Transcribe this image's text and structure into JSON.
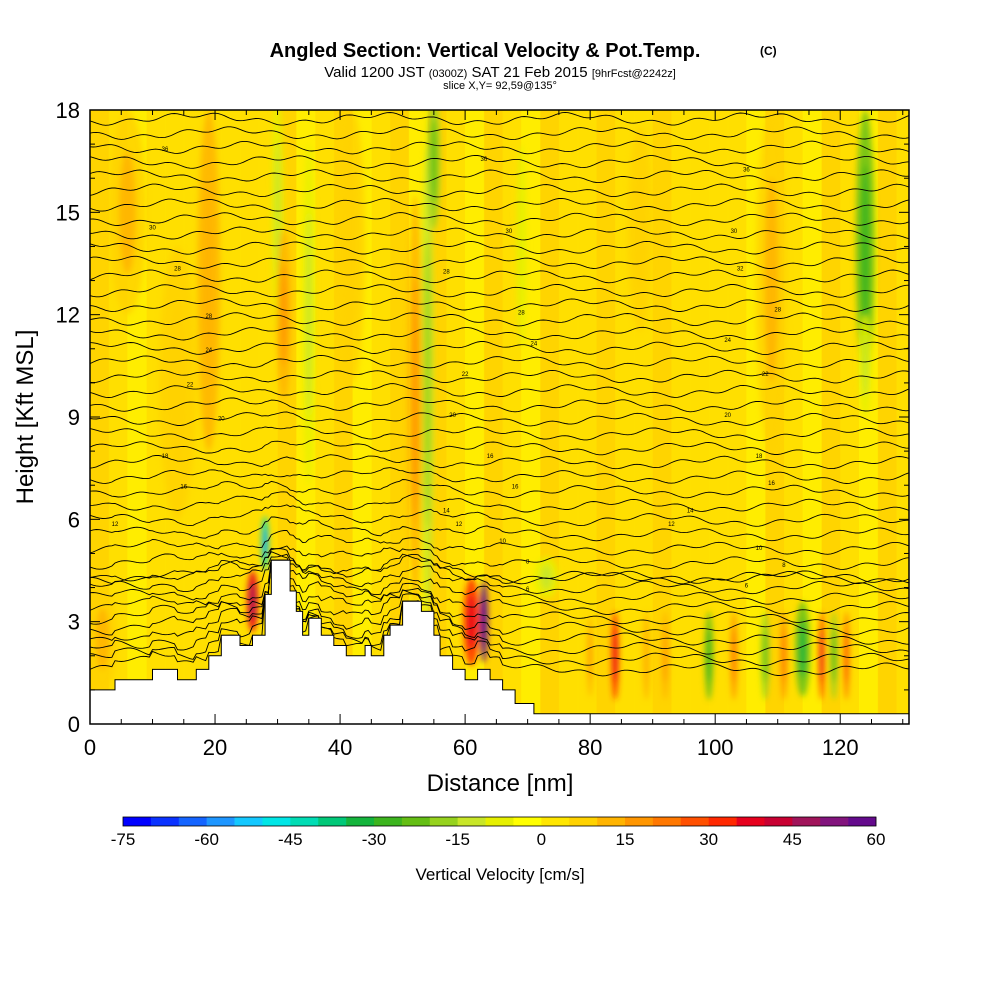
{
  "chart_data": {
    "type": "heatmap",
    "title": "Angled Section: Vertical Velocity & Pot.Temp.",
    "title_mark": "(C)",
    "subtitle": {
      "valid": "Valid 1200 JST",
      "utc": "(0300Z)",
      "date": "SAT 21 Feb 2015",
      "fcst": "[9hrFcst@2242z]"
    },
    "slice_label": "slice X,Y= 92,59@135°",
    "xlabel": "Distance [nm]",
    "ylabel": "Height [Kft MSL]",
    "xlim": [
      0,
      131
    ],
    "ylim": [
      0,
      18
    ],
    "x_ticks": [
      "0",
      "20",
      "40",
      "60",
      "80",
      "100",
      "120"
    ],
    "x_tick_values": [
      0,
      20,
      40,
      60,
      80,
      100,
      120
    ],
    "y_ticks": [
      "0",
      "3",
      "6",
      "9",
      "12",
      "15",
      "18"
    ],
    "y_tick_values": [
      0,
      3,
      6,
      9,
      12,
      15,
      18
    ],
    "colorbar": {
      "label": "Vertical Velocity [cm/s]",
      "ticks": [
        "-75",
        "-60",
        "-45",
        "-30",
        "-15",
        "0",
        "15",
        "30",
        "45",
        "60"
      ],
      "min": -75,
      "max": 60,
      "colors": [
        "#0000ff",
        "#0a32ff",
        "#1464ff",
        "#1e96ff",
        "#14c8ff",
        "#00e6e6",
        "#00dcb4",
        "#00c878",
        "#14b43c",
        "#3cb41e",
        "#64be14",
        "#96d21e",
        "#c8e628",
        "#e6f000",
        "#ffff00",
        "#ffe600",
        "#ffd200",
        "#ffb400",
        "#ff9600",
        "#ff7800",
        "#ff5000",
        "#ff2800",
        "#e6001e",
        "#c80032",
        "#a0145a",
        "#82147d",
        "#640a8c"
      ]
    },
    "terrain_profile": [
      [
        0,
        1.0
      ],
      [
        4,
        1.0
      ],
      [
        4,
        1.3
      ],
      [
        10,
        1.3
      ],
      [
        10,
        1.6
      ],
      [
        14,
        1.6
      ],
      [
        14,
        1.3
      ],
      [
        17,
        1.3
      ],
      [
        17,
        1.6
      ],
      [
        19,
        1.6
      ],
      [
        19,
        2.0
      ],
      [
        21,
        2.0
      ],
      [
        21,
        2.6
      ],
      [
        24,
        2.6
      ],
      [
        24,
        2.3
      ],
      [
        26,
        2.3
      ],
      [
        26,
        2.6
      ],
      [
        28,
        2.6
      ],
      [
        28,
        3.8
      ],
      [
        29,
        3.8
      ],
      [
        29,
        4.8
      ],
      [
        32,
        4.8
      ],
      [
        32,
        3.9
      ],
      [
        33,
        3.9
      ],
      [
        33,
        3.3
      ],
      [
        34,
        3.3
      ],
      [
        34,
        2.6
      ],
      [
        35,
        2.6
      ],
      [
        35,
        3.1
      ],
      [
        37,
        3.1
      ],
      [
        37,
        2.6
      ],
      [
        39,
        2.6
      ],
      [
        39,
        2.3
      ],
      [
        41,
        2.3
      ],
      [
        41,
        2.0
      ],
      [
        44,
        2.0
      ],
      [
        44,
        2.3
      ],
      [
        45,
        2.3
      ],
      [
        45,
        2.0
      ],
      [
        47,
        2.0
      ],
      [
        47,
        2.6
      ],
      [
        48,
        2.6
      ],
      [
        48,
        2.9
      ],
      [
        50,
        2.9
      ],
      [
        50,
        3.6
      ],
      [
        53,
        3.6
      ],
      [
        53,
        3.3
      ],
      [
        55,
        3.3
      ],
      [
        55,
        2.6
      ],
      [
        56,
        2.6
      ],
      [
        56,
        2.0
      ],
      [
        58,
        2.0
      ],
      [
        58,
        1.6
      ],
      [
        60,
        1.6
      ],
      [
        60,
        1.3
      ],
      [
        62,
        1.3
      ],
      [
        62,
        1.6
      ],
      [
        64,
        1.6
      ],
      [
        64,
        1.3
      ],
      [
        66,
        1.3
      ],
      [
        66,
        1.0
      ],
      [
        68,
        1.0
      ],
      [
        68,
        0.6
      ],
      [
        71,
        0.6
      ],
      [
        71,
        0.3
      ],
      [
        131,
        0.3
      ]
    ],
    "velocity_cells": [
      {
        "x": 26,
        "y": 3.6,
        "sx": 0.9,
        "sy": 0.9,
        "v": 38
      },
      {
        "x": 28,
        "y": 5.3,
        "sx": 0.6,
        "sy": 0.8,
        "v": -45
      },
      {
        "x": 30,
        "y": 15.0,
        "sx": 1.0,
        "sy": 3.5,
        "v": -10
      },
      {
        "x": 31,
        "y": 12.0,
        "sx": 1.2,
        "sy": 2.5,
        "v": 12
      },
      {
        "x": 35,
        "y": 12.0,
        "sx": 1.0,
        "sy": 5.0,
        "v": -8
      },
      {
        "x": 19,
        "y": 13.0,
        "sx": 1.8,
        "sy": 5.0,
        "v": 10
      },
      {
        "x": 6,
        "y": 15.0,
        "sx": 3.0,
        "sy": 3.0,
        "v": 8
      },
      {
        "x": 14,
        "y": 10.0,
        "sx": 3.0,
        "sy": 4.0,
        "v": 7
      },
      {
        "x": 54,
        "y": 10.0,
        "sx": 1.0,
        "sy": 7.0,
        "v": -12
      },
      {
        "x": 52,
        "y": 9.5,
        "sx": 1.2,
        "sy": 6.0,
        "v": 12
      },
      {
        "x": 55,
        "y": 16.5,
        "sx": 1.0,
        "sy": 2.0,
        "v": -16
      },
      {
        "x": 61,
        "y": 3.0,
        "sx": 1.3,
        "sy": 1.3,
        "v": 30
      },
      {
        "x": 63,
        "y": 3.0,
        "sx": 0.7,
        "sy": 1.2,
        "v": 55
      },
      {
        "x": 69,
        "y": 14.0,
        "sx": 0.8,
        "sy": 3.0,
        "v": -6
      },
      {
        "x": 73,
        "y": 4.3,
        "sx": 2.0,
        "sy": 0.6,
        "v": -8
      },
      {
        "x": 84,
        "y": 2.0,
        "sx": 0.6,
        "sy": 1.3,
        "v": 30
      },
      {
        "x": 80,
        "y": 2.0,
        "sx": 0.5,
        "sy": 1.2,
        "v": 12
      },
      {
        "x": 89,
        "y": 2.0,
        "sx": 0.6,
        "sy": 1.3,
        "v": 10
      },
      {
        "x": 92,
        "y": 2.0,
        "sx": 0.6,
        "sy": 1.3,
        "v": 12
      },
      {
        "x": 99,
        "y": 2.0,
        "sx": 0.7,
        "sy": 1.3,
        "v": -22
      },
      {
        "x": 103,
        "y": 2.0,
        "sx": 0.6,
        "sy": 1.3,
        "v": 18
      },
      {
        "x": 108,
        "y": 2.0,
        "sx": 0.7,
        "sy": 1.3,
        "v": -18
      },
      {
        "x": 111,
        "y": 2.0,
        "sx": 0.6,
        "sy": 1.3,
        "v": 16
      },
      {
        "x": 114,
        "y": 2.2,
        "sx": 1.2,
        "sy": 1.4,
        "v": -24
      },
      {
        "x": 117,
        "y": 2.0,
        "sx": 0.5,
        "sy": 1.3,
        "v": 28
      },
      {
        "x": 119,
        "y": 2.0,
        "sx": 0.6,
        "sy": 1.3,
        "v": -20
      },
      {
        "x": 121,
        "y": 2.0,
        "sx": 0.5,
        "sy": 1.3,
        "v": 22
      },
      {
        "x": 124,
        "y": 14.0,
        "sx": 1.5,
        "sy": 4.0,
        "v": -22
      },
      {
        "x": 124,
        "y": 10.5,
        "sx": 1.0,
        "sy": 1.5,
        "v": -8
      },
      {
        "x": 109,
        "y": 13.0,
        "sx": 2.5,
        "sy": 5.0,
        "v": 8
      },
      {
        "x": 88,
        "y": 14.5,
        "sx": 2.0,
        "sy": 3.0,
        "v": 7
      },
      {
        "x": 42,
        "y": 14.0,
        "sx": 2.0,
        "sy": 4.0,
        "v": 6
      },
      {
        "x": 2,
        "y": 2.5,
        "sx": 2.5,
        "sy": 1.5,
        "v": 8
      }
    ],
    "isentrope_labels": [
      {
        "text": "36",
        "x": 12,
        "y": 16.8
      },
      {
        "text": "36",
        "x": 63,
        "y": 16.5
      },
      {
        "text": "36",
        "x": 105,
        "y": 16.2
      },
      {
        "text": "30",
        "x": 10,
        "y": 14.5
      },
      {
        "text": "30",
        "x": 67,
        "y": 14.4
      },
      {
        "text": "30",
        "x": 103,
        "y": 14.4
      },
      {
        "text": "32",
        "x": 104,
        "y": 13.3
      },
      {
        "text": "28",
        "x": 14,
        "y": 13.3
      },
      {
        "text": "28",
        "x": 57,
        "y": 13.2
      },
      {
        "text": "28",
        "x": 110,
        "y": 12.1
      },
      {
        "text": "28",
        "x": 19,
        "y": 11.9
      },
      {
        "text": "28",
        "x": 69,
        "y": 12.0
      },
      {
        "text": "24",
        "x": 19,
        "y": 10.9
      },
      {
        "text": "24",
        "x": 71,
        "y": 11.1
      },
      {
        "text": "24",
        "x": 102,
        "y": 11.2
      },
      {
        "text": "22",
        "x": 60,
        "y": 10.2
      },
      {
        "text": "22",
        "x": 108,
        "y": 10.2
      },
      {
        "text": "22",
        "x": 16,
        "y": 9.9
      },
      {
        "text": "20",
        "x": 21,
        "y": 8.9
      },
      {
        "text": "20",
        "x": 58,
        "y": 9.0
      },
      {
        "text": "20",
        "x": 102,
        "y": 9.0
      },
      {
        "text": "18",
        "x": 12,
        "y": 7.8
      },
      {
        "text": "16",
        "x": 64,
        "y": 7.8
      },
      {
        "text": "18",
        "x": 107,
        "y": 7.8
      },
      {
        "text": "16",
        "x": 15,
        "y": 6.9
      },
      {
        "text": "16",
        "x": 68,
        "y": 6.9
      },
      {
        "text": "16",
        "x": 109,
        "y": 7.0
      },
      {
        "text": "14",
        "x": 57,
        "y": 6.2
      },
      {
        "text": "14",
        "x": 96,
        "y": 6.2
      },
      {
        "text": "12",
        "x": 4,
        "y": 5.8
      },
      {
        "text": "12",
        "x": 59,
        "y": 5.8
      },
      {
        "text": "12",
        "x": 93,
        "y": 5.8
      },
      {
        "text": "10",
        "x": 66,
        "y": 5.3
      },
      {
        "text": "10",
        "x": 107,
        "y": 5.1
      },
      {
        "text": "8",
        "x": 70,
        "y": 4.7
      },
      {
        "text": "8",
        "x": 111,
        "y": 4.6
      },
      {
        "text": "6",
        "x": 70,
        "y": 3.9
      },
      {
        "text": "6",
        "x": 105,
        "y": 4.0
      }
    ]
  }
}
